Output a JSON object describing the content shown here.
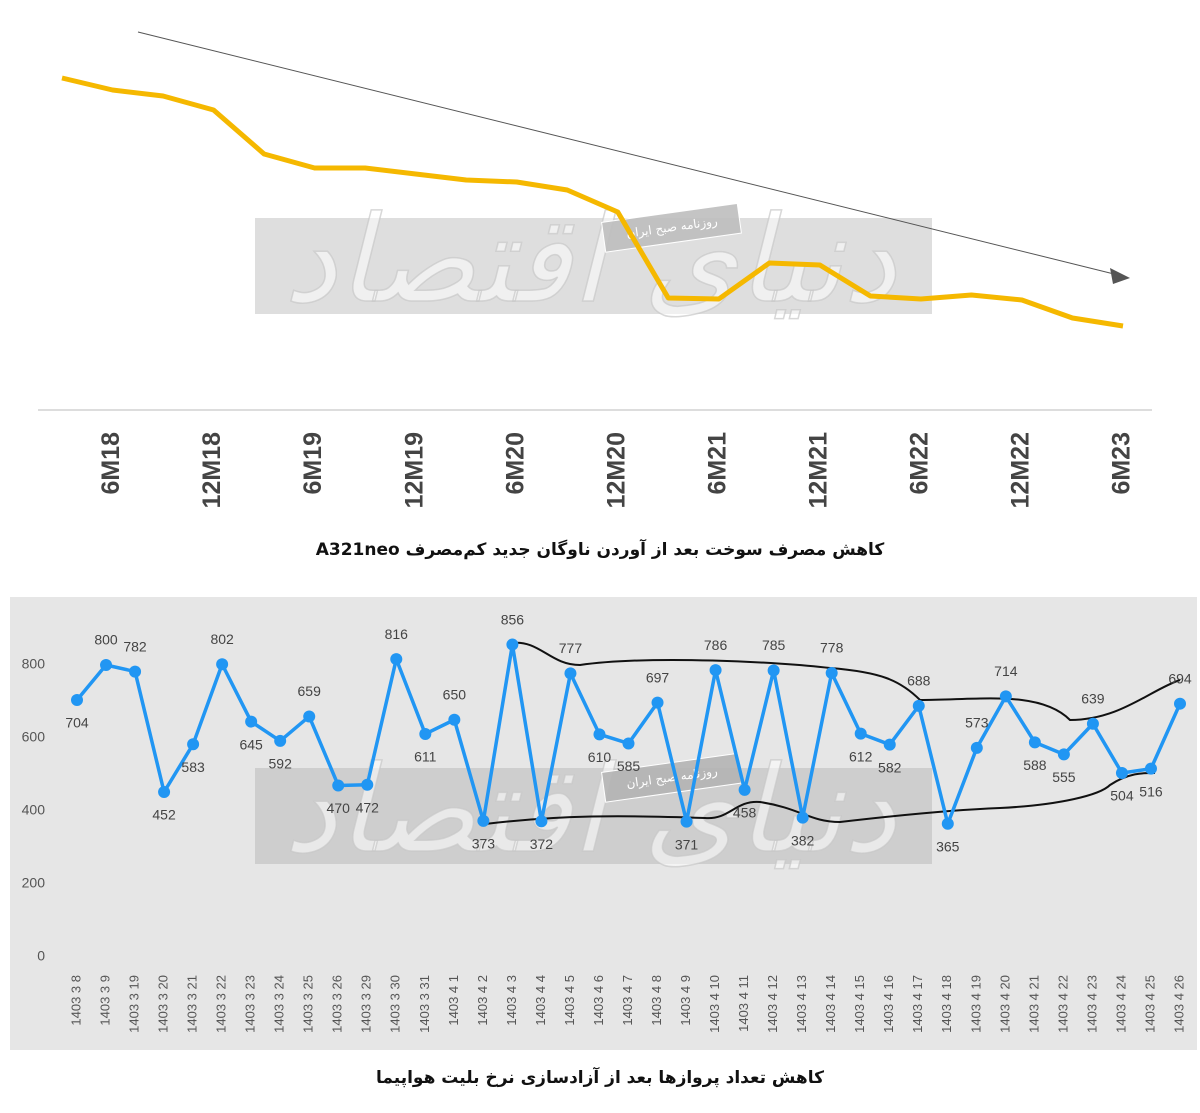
{
  "chart_data": [
    {
      "type": "line",
      "title": "کاهش مصرف سوخت بعد از آوردن ناوگان جدید کم‌مصرف A321neo",
      "categories": [
        null,
        "6M18",
        null,
        "12M18",
        null,
        "6M19",
        null,
        "12M19",
        null,
        "6M20",
        null,
        "12M20",
        null,
        "6M21",
        null,
        "12M21",
        null,
        "6M22",
        null,
        "12M22",
        null,
        "6M23"
      ],
      "values": [
        83,
        80,
        78.5,
        75,
        64,
        60.5,
        60.5,
        59,
        57.5,
        57,
        55,
        49.5,
        28,
        27.75,
        36.75,
        36.25,
        28.5,
        27.75,
        28.75,
        27.5,
        23,
        21
      ],
      "color": "#f5b800",
      "ylim": [
        0,
        100
      ]
    },
    {
      "type": "line",
      "title": "کاهش تعداد پروازها بعد از آزادسازی نرخ بلیت هواپیما",
      "categories": [
        "1403 3 8",
        "1403 3 9",
        "1403 3 19",
        "1403 3 20",
        "1403 3 21",
        "1403 3 22",
        "1403 3 23",
        "1403 3 24",
        "1403 3 25",
        "1403 3 26",
        "1403 3 29",
        "1403 3 30",
        "1403 3 31",
        "1403 4 1",
        "1403 4 2",
        "1403 4 3",
        "1403 4 4",
        "1403 4 5",
        "1403 4 6",
        "1403 4 7",
        "1403 4 8",
        "1403 4 9",
        "1403 4 10",
        "1403 4 11",
        "1403 4 12",
        "1403 4 13",
        "1403 4 14",
        "1403 4 15",
        "1403 4 16",
        "1403 4 17",
        "1403 4 18",
        "1403 4 19",
        "1403 4 20",
        "1403 4 21",
        "1403 4 22",
        "1403 4 23",
        "1403 4 24",
        "1403 4 25",
        "1403 4 26"
      ],
      "values": [
        704,
        800,
        782,
        452,
        583,
        802,
        645,
        592,
        659,
        470,
        472,
        816,
        611,
        650,
        373,
        856,
        372,
        777,
        610,
        585,
        697,
        371,
        786,
        458,
        785,
        382,
        778,
        612,
        582,
        688,
        365,
        573,
        714,
        588,
        555,
        639,
        504,
        516,
        694
      ],
      "color": "#2196f3",
      "ylim": [
        0,
        900
      ],
      "yticks": [
        0,
        200,
        400,
        600,
        800
      ],
      "data_labels": true
    }
  ],
  "watermark": "دنیای اقتصاد",
  "watermark_badge": "روزنامه صبح ایران"
}
